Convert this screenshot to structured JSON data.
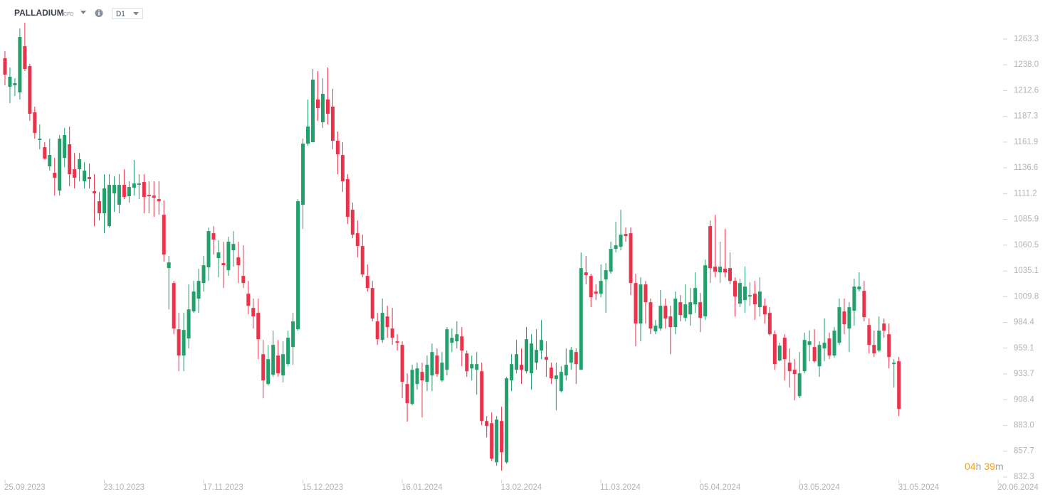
{
  "header": {
    "symbol": "PALLADIUM",
    "instrument": "CFD",
    "timeframe": "D1"
  },
  "countdown": {
    "hours": "04",
    "hours_unit": "h",
    "minutes": "39",
    "minutes_unit": "m"
  },
  "chart_data": {
    "type": "candlestick",
    "up_color": "#22a06b",
    "down_color": "#e8334a",
    "xlim": [
      -1,
      210
    ],
    "ylim": [
      820,
      1300
    ],
    "xticks": [
      {
        "value": 0,
        "label": "25.09.2023"
      },
      {
        "value": 20,
        "label": "23.10.2023"
      },
      {
        "value": 40,
        "label": "17.11.2023"
      },
      {
        "value": 60,
        "label": "15.12.2023"
      },
      {
        "value": 80,
        "label": "16.01.2024"
      },
      {
        "value": 100,
        "label": "13.02.2024"
      },
      {
        "value": 120,
        "label": "11.03.2024"
      },
      {
        "value": 140,
        "label": "05.04.2024"
      },
      {
        "value": 160,
        "label": "03.05.2024"
      },
      {
        "value": 180,
        "label": "31.05.2024"
      },
      {
        "value": 200,
        "label": "20.06.2024"
      }
    ],
    "yticks": [
      1263.3,
      {
        "value": 1238,
        "label": "1238.0"
      },
      1212.6,
      1187.3,
      1161.9,
      1136.6,
      1111.2,
      1085.9,
      1060.5,
      1035.1,
      1009.8,
      984.4,
      959.1,
      933.7,
      908.4,
      {
        "value": 883,
        "label": "883.0"
      },
      857.7,
      832.3
    ],
    "candles": [
      [
        1244.4,
        1251.4,
        1217.8,
        1228.3
      ],
      [
        1216.4,
        1235.3,
        1200.3,
        1226.2
      ],
      [
        1217.8,
        1224.8,
        1207.3,
        1219.9
      ],
      [
        1210.8,
        1273.8,
        1203.8,
        1265.4
      ],
      [
        1256.3,
        1279.4,
        1231.8,
        1233.9
      ],
      [
        1236.7,
        1238.8,
        1182.8,
        1189.8
      ],
      [
        1191.2,
        1196.8,
        1165.3,
        1170.9
      ],
      [
        1163.9,
        1179.3,
        1154.8,
        1165.3
      ],
      [
        1156.9,
        1161.8,
        1144.3,
        1145.7
      ],
      [
        1138.0,
        1165.3,
        1133.8,
        1149.2
      ],
      [
        1131.7,
        1146.4,
        1109.3,
        1126.8
      ],
      [
        1114.2,
        1168.8,
        1109.3,
        1165.3
      ],
      [
        1146.4,
        1175.8,
        1137.3,
        1168.8
      ],
      [
        1159.7,
        1177.2,
        1118.4,
        1130.3
      ],
      [
        1135.2,
        1151.3,
        1116.3,
        1126.8
      ],
      [
        1135.2,
        1151.3,
        1123.3,
        1145.0
      ],
      [
        1123.3,
        1142.2,
        1116.3,
        1133.8
      ],
      [
        1127.5,
        1140.8,
        1116.3,
        1125.4
      ],
      [
        1113.5,
        1130.3,
        1079.2,
        1111.4
      ],
      [
        1103.7,
        1112.8,
        1084.8,
        1091.8
      ],
      [
        1091.8,
        1130.3,
        1072.2,
        1116.3
      ],
      [
        1079.2,
        1130.3,
        1077.8,
        1119.8
      ],
      [
        1111.4,
        1128.2,
        1093.2,
        1119.8
      ],
      [
        1100.2,
        1130.3,
        1091.8,
        1119.8
      ],
      [
        1119.8,
        1135.2,
        1105.8,
        1107.9
      ],
      [
        1108.6,
        1123.3,
        1102.3,
        1117.7
      ],
      [
        1117.0,
        1144.3,
        1109.3,
        1121.2
      ],
      [
        1119.8,
        1130.3,
        1105.8,
        1121.2
      ],
      [
        1122.6,
        1130.3,
        1091.8,
        1107.9
      ],
      [
        1110.0,
        1123.3,
        1091.8,
        1108.6
      ],
      [
        1109.3,
        1123.3,
        1088.3,
        1107.2
      ],
      [
        1105.8,
        1123.3,
        1090.4,
        1103.7
      ],
      [
        1090.4,
        1104.4,
        1044.2,
        1051.2
      ],
      [
        1037.9,
        1049.8,
        997.3,
        1043.5
      ],
      [
        1023.2,
        1025.3,
        972.8,
        978.4
      ],
      [
        977.7,
        993.8,
        936.4,
        951.8
      ],
      [
        951.8,
        993.8,
        936.4,
        977.0
      ],
      [
        968.6,
        1021.8,
        958.8,
        997.3
      ],
      [
        995.2,
        1025.3,
        993.8,
        1014.8
      ],
      [
        1007.8,
        1037.2,
        993.8,
        1025.3
      ],
      [
        1023.2,
        1049.8,
        1014.8,
        1040.7
      ],
      [
        1038.6,
        1077.8,
        1025.3,
        1074.3
      ],
      [
        1072.2,
        1079.2,
        1051.2,
        1065.9
      ],
      [
        1047.7,
        1065.2,
        1028.8,
        1053.3
      ],
      [
        1042.8,
        1063.8,
        1018.3,
        1040.7
      ],
      [
        1035.8,
        1068.7,
        1030.2,
        1063.8
      ],
      [
        1055.4,
        1074.3,
        1039.3,
        1061.7
      ],
      [
        1048.4,
        1063.8,
        1023.2,
        1040.7
      ],
      [
        1030.2,
        1060.3,
        1018.3,
        1023.2
      ],
      [
        1012.7,
        1025.3,
        992.4,
        1000.8
      ],
      [
        998.7,
        1007.8,
        978.4,
        990.3
      ],
      [
        993.8,
        1007.8,
        948.3,
        967.9
      ],
      [
        953.2,
        967.2,
        909.8,
        927.3
      ],
      [
        923.8,
        962.3,
        922.4,
        948.3
      ],
      [
        932.9,
        976.3,
        930.8,
        962.3
      ],
      [
        951.8,
        967.2,
        930.8,
        934.3
      ],
      [
        932.2,
        965.8,
        925.2,
        953.2
      ],
      [
        943.4,
        976.3,
        941.3,
        969.3
      ],
      [
        960.2,
        993.8,
        942.7,
        985.4
      ],
      [
        977.7,
        1105.8,
        976.3,
        1103.7
      ],
      [
        1100.2,
        1165.3,
        1076.4,
        1160.4
      ],
      [
        1160.4,
        1203.8,
        1158.3,
        1177.2
      ],
      [
        1161.8,
        1233.9,
        1161.8,
        1223.4
      ],
      [
        1203.8,
        1231.8,
        1182.8,
        1195.4
      ],
      [
        1181.4,
        1224.8,
        1175.8,
        1209.4
      ],
      [
        1203.8,
        1235.3,
        1179.3,
        1189.8
      ],
      [
        1196.8,
        1214.3,
        1154.8,
        1163.2
      ],
      [
        1163.2,
        1172.3,
        1130.3,
        1149.9
      ],
      [
        1149.2,
        1161.8,
        1112.8,
        1123.3
      ],
      [
        1125.4,
        1130.3,
        1081.3,
        1088.3
      ],
      [
        1095.3,
        1102.3,
        1067.3,
        1070.8
      ],
      [
        1072.2,
        1084.8,
        1048.4,
        1059.6
      ],
      [
        1059.6,
        1070.8,
        1028.8,
        1031.6
      ],
      [
        1030.2,
        1041.4,
        1014.8,
        1018.3
      ],
      [
        1018.3,
        1025.3,
        985.4,
        988.2
      ],
      [
        985.4,
        993.8,
        962.3,
        967.9
      ],
      [
        967.2,
        1007.8,
        964.4,
        993.8
      ],
      [
        990.3,
        1000.8,
        969.3,
        979.8
      ],
      [
        978.4,
        998.7,
        962.3,
        969.3
      ],
      [
        965.8,
        972.8,
        956.7,
        964.4
      ],
      [
        962.3,
        965.8,
        909.8,
        925.9
      ],
      [
        923.8,
        934.3,
        886.7,
        904.9
      ],
      [
        904.2,
        942.7,
        902.8,
        937.8
      ],
      [
        923.8,
        944.8,
        918.2,
        939.2
      ],
      [
        935.7,
        944.8,
        890.9,
        927.3
      ],
      [
        925.9,
        951.8,
        916.8,
        942.7
      ],
      [
        932.2,
        963.7,
        916.8,
        955.3
      ],
      [
        951.8,
        958.8,
        930.8,
        933.6
      ],
      [
        927.3,
        955.3,
        925.9,
        944.8
      ],
      [
        937.8,
        979.8,
        932.2,
        977.7
      ],
      [
        964.4,
        978.4,
        955.3,
        969.3
      ],
      [
        965.8,
        985.4,
        958.8,
        972.8
      ],
      [
        970.7,
        979.8,
        941.3,
        956.7
      ],
      [
        953.9,
        956.7,
        930.8,
        936.4
      ],
      [
        939.2,
        951.8,
        927.3,
        943.4
      ],
      [
        937.8,
        955.3,
        913.3,
        943.4
      ],
      [
        936.4,
        944.8,
        883.2,
        887.4
      ],
      [
        887.4,
        892.3,
        871.3,
        882.5
      ],
      [
        885.3,
        895.8,
        848.2,
        850.3
      ],
      [
        846.8,
        892.3,
        843.3,
        888.8
      ],
      [
        887.4,
        901.4,
        838.4,
        856.6
      ],
      [
        846.8,
        930.8,
        845.4,
        929.4
      ],
      [
        927.3,
        953.2,
        916.8,
        943.4
      ],
      [
        937.8,
        967.2,
        934.3,
        953.2
      ],
      [
        942.7,
        958.8,
        923.8,
        937.8
      ],
      [
        936.4,
        979.8,
        934.3,
        967.9
      ],
      [
        934.3,
        972.8,
        918.2,
        963.7
      ],
      [
        944.8,
        977.7,
        937.8,
        957.4
      ],
      [
        956.7,
        986.8,
        948.3,
        967.2
      ],
      [
        950.4,
        965.8,
        930.8,
        947.6
      ],
      [
        939.9,
        944.8,
        923.8,
        929.4
      ],
      [
        928.7,
        944.8,
        897.9,
        932.2
      ],
      [
        916.8,
        941.3,
        915.4,
        935.7
      ],
      [
        932.2,
        958.8,
        927.3,
        942.7
      ],
      [
        944.8,
        960.2,
        937.8,
        957.4
      ],
      [
        955.3,
        958.8,
        923.8,
        943.4
      ],
      [
        937.8,
        1053.3,
        937.8,
        1037.9
      ],
      [
        1033.7,
        1049.8,
        1021.8,
        1030.9
      ],
      [
        1030.2,
        1032.3,
        999.4,
        1009.2
      ],
      [
        1014.8,
        1021.8,
        1006.4,
        1012.7
      ],
      [
        1012.7,
        1041.4,
        1009.2,
        1025.3
      ],
      [
        1026.7,
        1042.8,
        993.8,
        1035.8
      ],
      [
        1034.4,
        1063.8,
        1032.3,
        1056.8
      ],
      [
        1056.8,
        1083.4,
        1053.3,
        1060.3
      ],
      [
        1058.9,
        1095.3,
        1055.4,
        1070.8
      ],
      [
        1071.5,
        1077.8,
        1063.8,
        1069.4
      ],
      [
        1072.2,
        1077.8,
        1011.3,
        1023.2
      ],
      [
        1023.2,
        1032.3,
        960.9,
        983.3
      ],
      [
        983.3,
        1028.8,
        965.8,
        1021.8
      ],
      [
        1021.8,
        1025.3,
        983.3,
        1004.3
      ],
      [
        1004.3,
        1007.8,
        972.8,
        978.4
      ],
      [
        975.6,
        986.8,
        972.8,
        981.2
      ],
      [
        978.4,
        1016.2,
        976.3,
        1000.8
      ],
      [
        1000.8,
        1007.8,
        978.4,
        988.2
      ],
      [
        990.3,
        1000.8,
        953.2,
        979.8
      ],
      [
        979.8,
        1014.8,
        972.8,
        1007.8
      ],
      [
        1004.3,
        1011.3,
        985.4,
        991.7
      ],
      [
        988.9,
        1021.8,
        985.4,
        1002.2
      ],
      [
        992.4,
        1018.3,
        981.2,
        1004.3
      ],
      [
        1002.2,
        1033.7,
        993.8,
        1018.3
      ],
      [
        1004.3,
        1013.4,
        974.9,
        988.9
      ],
      [
        990.3,
        1046.3,
        986.8,
        1040.7
      ],
      [
        1079.2,
        1084.8,
        1023.2,
        1037.9
      ],
      [
        1039.3,
        1090.4,
        1028.8,
        1034.4
      ],
      [
        1033.7,
        1063.8,
        1023.2,
        1039.3
      ],
      [
        1037.2,
        1076.4,
        1028.8,
        1033.7
      ],
      [
        1037.9,
        1053.3,
        1021.8,
        1025.3
      ],
      [
        1025.3,
        1028.8,
        990.3,
        1009.9
      ],
      [
        1002.9,
        1027.4,
        999.4,
        1023.2
      ],
      [
        1006.4,
        1039.3,
        993.8,
        1019.7
      ],
      [
        1009.9,
        1023.9,
        1000.8,
        1011.3
      ],
      [
        1012.7,
        1025.3,
        986.8,
        1002.2
      ],
      [
        999.4,
        1028.8,
        990.3,
        1014.8
      ],
      [
        1000.8,
        1007.8,
        983.3,
        992.4
      ],
      [
        993.8,
        999.4,
        971.4,
        972.8
      ],
      [
        972.8,
        976.3,
        937.8,
        943.4
      ],
      [
        946.9,
        964.4,
        946.2,
        961.6
      ],
      [
        969.3,
        972.8,
        927.3,
        948.3
      ],
      [
        944.8,
        958.8,
        920.3,
        936.4
      ],
      [
        937.8,
        948.3,
        907.7,
        933.6
      ],
      [
        911.9,
        955.3,
        909.8,
        934.3
      ],
      [
        936.4,
        974.2,
        934.3,
        967.2
      ],
      [
        962.3,
        976.3,
        946.2,
        965.8
      ],
      [
        960.2,
        977.7,
        944.8,
        946.2
      ],
      [
        941.3,
        965.8,
        930.8,
        962.3
      ],
      [
        958.8,
        988.2,
        946.2,
        964.4
      ],
      [
        968.6,
        974.2,
        948.3,
        951.8
      ],
      [
        951.8,
        979.8,
        949.7,
        976.3
      ],
      [
        964.4,
        1007.8,
        962.3,
        999.4
      ],
      [
        995.2,
        1007.8,
        972.8,
        982.6
      ],
      [
        978.4,
        1004.3,
        955.3,
        999.4
      ],
      [
        995.9,
        1027.4,
        981.2,
        1019.7
      ],
      [
        1016.9,
        1033.7,
        1014.8,
        1019.7
      ],
      [
        1015.5,
        1025.3,
        985.4,
        989.6
      ],
      [
        981.9,
        988.2,
        953.9,
        962.3
      ],
      [
        962.3,
        976.3,
        950.4,
        953.9
      ],
      [
        956.7,
        990.3,
        955.3,
        976.3
      ],
      [
        983.3,
        988.2,
        969.3,
        976.3
      ],
      [
        972.8,
        983.3,
        939.2,
        950.4
      ],
      [
        943.4,
        948.3,
        920.3,
        944.8
      ],
      [
        946.2,
        950.4,
        892.3,
        899.3
      ]
    ]
  }
}
